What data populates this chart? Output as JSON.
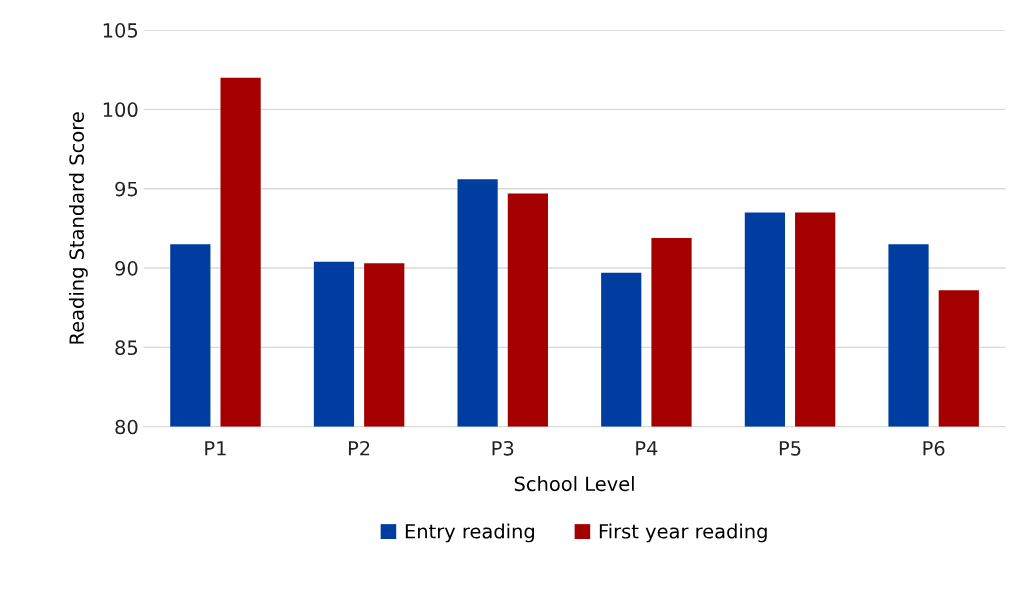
{
  "chart_data": {
    "type": "bar",
    "xlabel": "School Level",
    "ylabel": "Reading Standard Score",
    "categories": [
      "P1",
      "P2",
      "P3",
      "P4",
      "P5",
      "P6"
    ],
    "series": [
      {
        "name": "Entry reading",
        "color": "#003da0",
        "values": [
          91.5,
          90.4,
          95.6,
          89.7,
          93.5,
          91.5
        ]
      },
      {
        "name": "First year reading",
        "color": "#a50000",
        "values": [
          102.0,
          90.3,
          94.7,
          91.9,
          93.5,
          88.6
        ]
      }
    ],
    "ylim": [
      80,
      105
    ],
    "yticks": [
      80,
      85,
      90,
      95,
      100,
      105
    ],
    "grid": "y",
    "legend": "bottom"
  }
}
